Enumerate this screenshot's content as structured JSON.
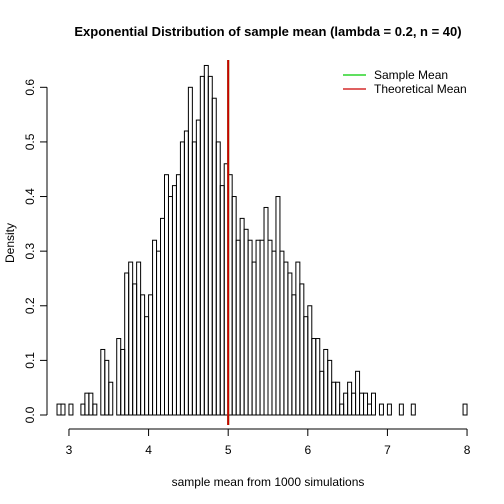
{
  "chart_data": {
    "type": "bar",
    "title": "Exponential Distribution of sample mean (lambda = 0.2, n = 40)",
    "xlabel": "sample mean from 1000 simulations",
    "ylabel": "Density",
    "xlim": [
      2.9,
      8.1
    ],
    "ylim": [
      0,
      0.65
    ],
    "xticks": [
      3,
      4,
      5,
      6,
      7,
      8
    ],
    "yticks": [
      0.0,
      0.1,
      0.2,
      0.3,
      0.4,
      0.5,
      0.6
    ],
    "ytick_labels": [
      "0.0",
      "0.1",
      "0.2",
      "0.3",
      "0.4",
      "0.5",
      "0.6"
    ],
    "bin_start": 2.85,
    "bin_width": 0.05,
    "densities": [
      0.02,
      0.02,
      0.0,
      0.02,
      0.0,
      0.0,
      0.02,
      0.04,
      0.04,
      0.02,
      0.0,
      0.12,
      0.1,
      0.06,
      0.0,
      0.14,
      0.12,
      0.26,
      0.28,
      0.24,
      0.28,
      0.22,
      0.18,
      0.22,
      0.32,
      0.3,
      0.36,
      0.44,
      0.4,
      0.42,
      0.44,
      0.5,
      0.52,
      0.6,
      0.5,
      0.54,
      0.62,
      0.64,
      0.62,
      0.58,
      0.5,
      0.42,
      0.46,
      0.44,
      0.4,
      0.32,
      0.36,
      0.34,
      0.32,
      0.28,
      0.32,
      0.32,
      0.38,
      0.32,
      0.3,
      0.4,
      0.3,
      0.28,
      0.26,
      0.22,
      0.28,
      0.24,
      0.18,
      0.2,
      0.14,
      0.14,
      0.08,
      0.12,
      0.1,
      0.06,
      0.06,
      0.02,
      0.04,
      0.06,
      0.04,
      0.08,
      0.04,
      0.04,
      0.02,
      0.04,
      0.0,
      0.02,
      0.0,
      0.02,
      0.0,
      0.0,
      0.02,
      0.0,
      0.0,
      0.02,
      0.0,
      0.0,
      0.0,
      0.0,
      0.0,
      0.0,
      0.0,
      0.0,
      0.0,
      0.0,
      0.0,
      0.0,
      0.02,
      0.0
    ],
    "vlines": [
      {
        "name": "Sample Mean",
        "value": 5.0,
        "color": "#00cc00"
      },
      {
        "name": "Theoretical Mean",
        "value": 5.0,
        "color": "#cc0000"
      }
    ],
    "legend_position": "top-right",
    "grid": false
  }
}
